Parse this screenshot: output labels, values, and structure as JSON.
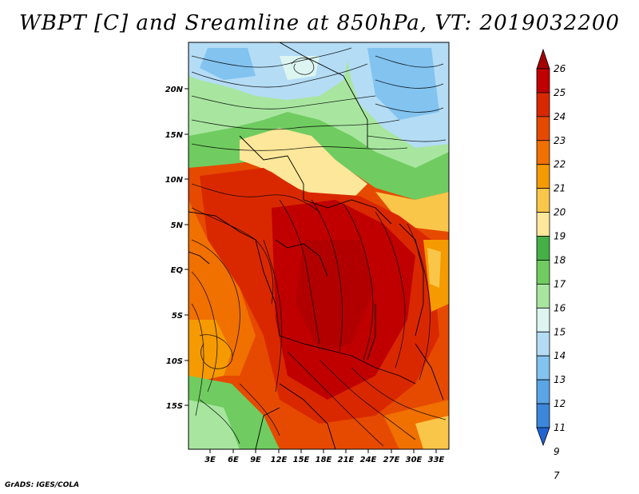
{
  "title": "WBPT [C] and Sreamline at 850hPa, VT: 2019032200",
  "footer": "GrADS: IGES/COLA",
  "map": {
    "lat_labels": [
      "20N",
      "15N",
      "10N",
      "5N",
      "EQ",
      "5S",
      "10S",
      "15S"
    ],
    "lon_labels": [
      "3E",
      "6E",
      "9E",
      "12E",
      "15E",
      "18E",
      "21E",
      "24E",
      "27E",
      "30E",
      "33E"
    ]
  },
  "colorbar": {
    "levels": [
      "26",
      "25",
      "24",
      "23",
      "22",
      "21",
      "20",
      "19",
      "18",
      "17",
      "16",
      "15",
      "14",
      "13",
      "12",
      "11",
      "9",
      "7"
    ],
    "colors": [
      "#a50000",
      "#c00000",
      "#d92800",
      "#e64a00",
      "#f07000",
      "#f59a00",
      "#f9c64a",
      "#fde79a",
      "#45b045",
      "#70cc60",
      "#a8e6a0",
      "#dcf5f0",
      "#b4dcf5",
      "#82c3f0",
      "#5aa5e6",
      "#3c87dc",
      "#2064d2"
    ]
  }
}
